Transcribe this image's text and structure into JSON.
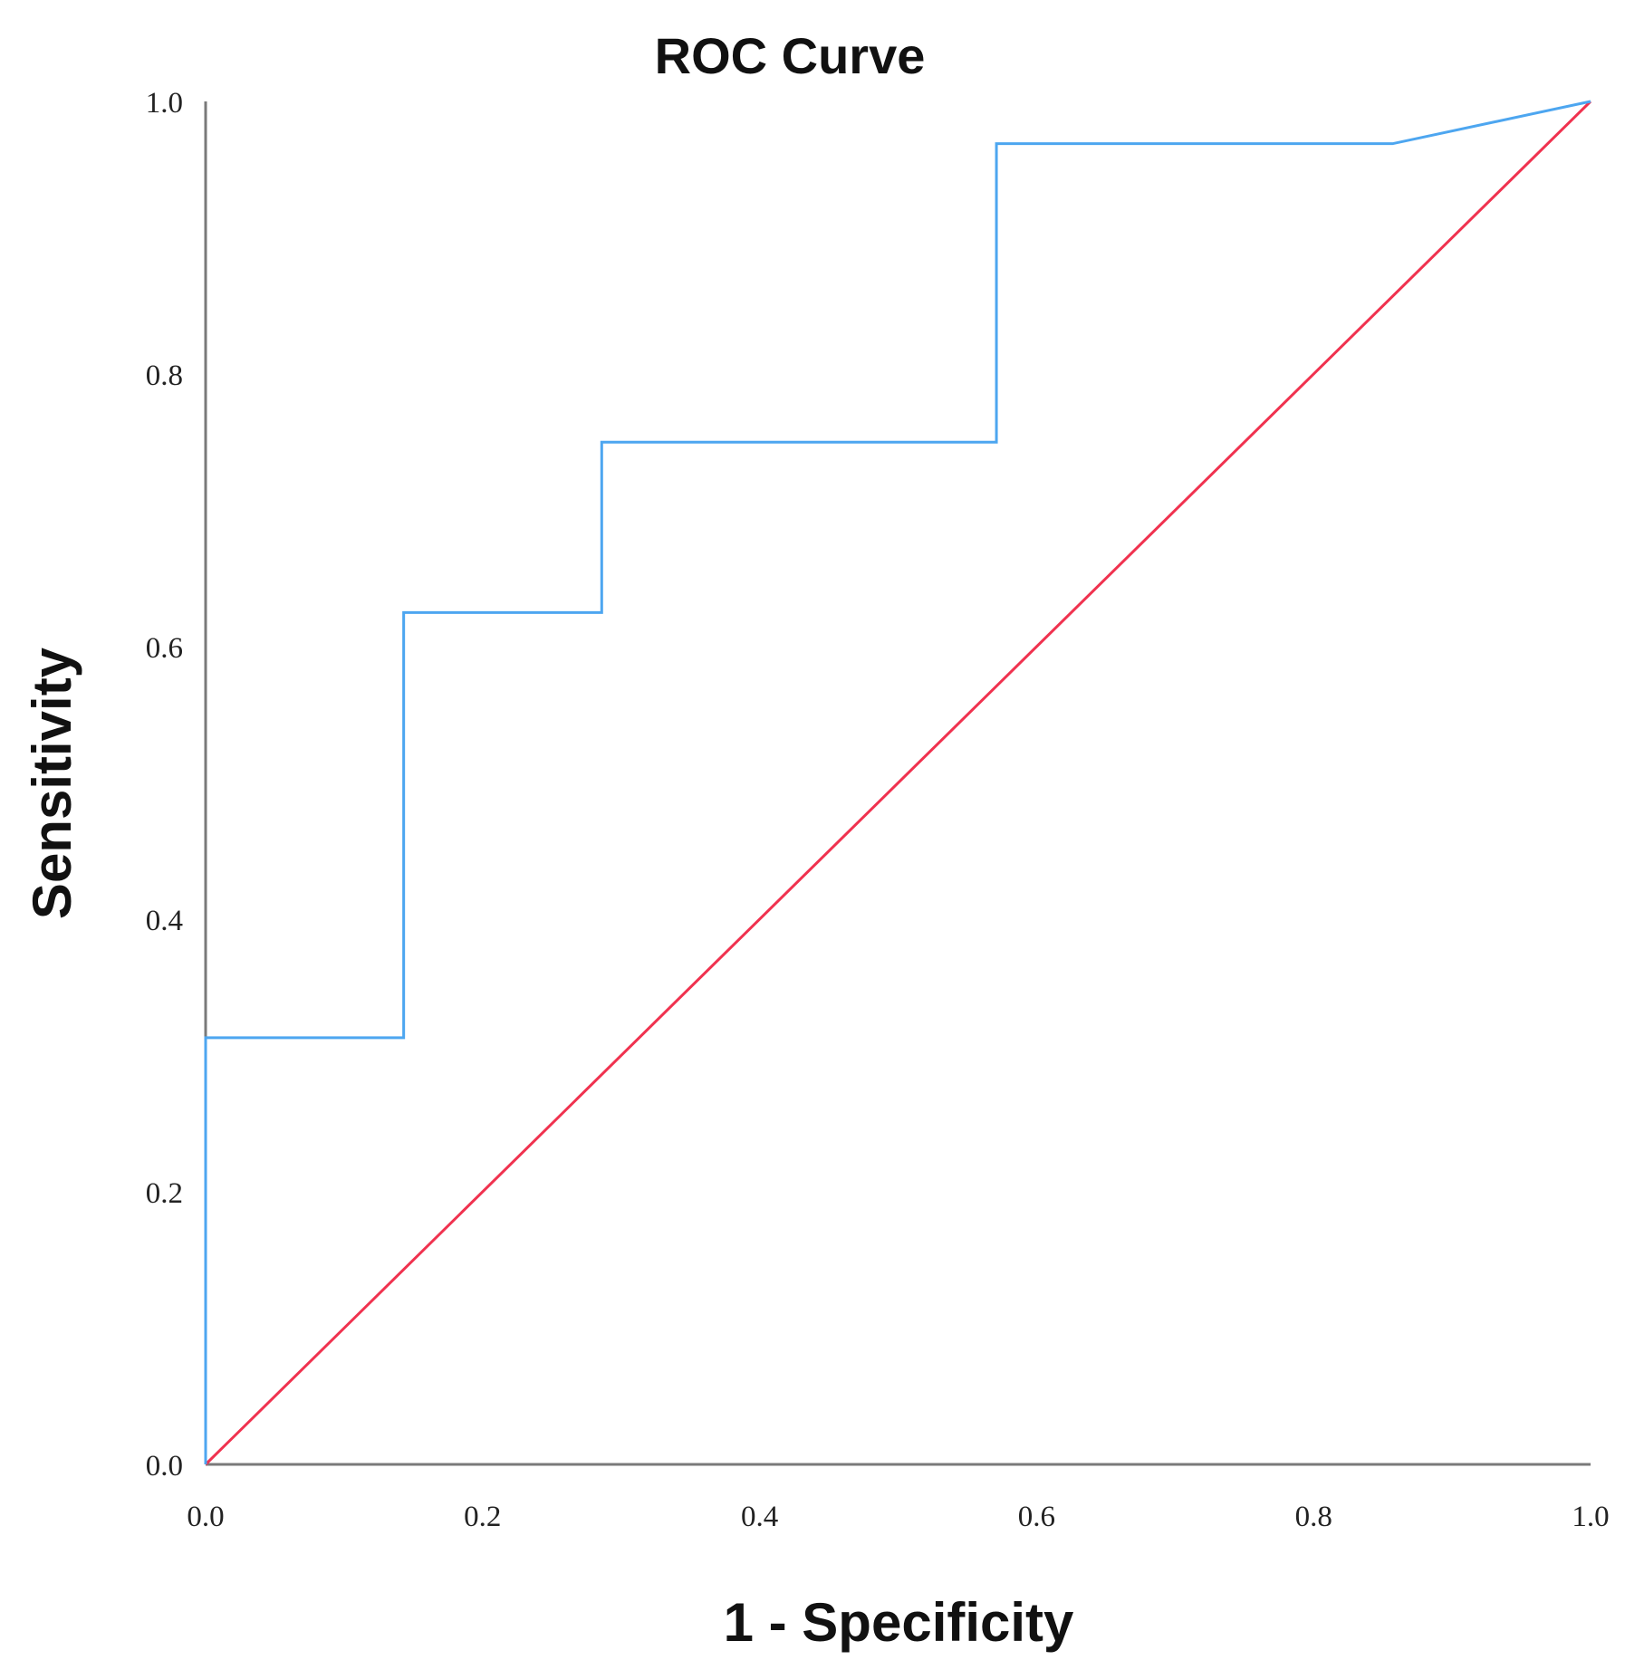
{
  "chart_data": {
    "type": "line",
    "title": "ROC Curve",
    "xlabel": "1 - Specificity",
    "ylabel": "Sensitivity",
    "xlim": [
      0,
      1
    ],
    "ylim": [
      0,
      1
    ],
    "grid": false,
    "x_ticks": [
      "0.0",
      "0.2",
      "0.4",
      "0.6",
      "0.8",
      "1.0"
    ],
    "y_ticks": [
      "0.0",
      "0.2",
      "0.4",
      "0.6",
      "0.8",
      "1.0"
    ],
    "series": [
      {
        "color": "#4da6f0",
        "points": [
          [
            0.0,
            0.0
          ],
          [
            0.0,
            0.313
          ],
          [
            0.143,
            0.313
          ],
          [
            0.143,
            0.625
          ],
          [
            0.286,
            0.625
          ],
          [
            0.286,
            0.75
          ],
          [
            0.571,
            0.75
          ],
          [
            0.571,
            0.969
          ],
          [
            0.857,
            0.969
          ],
          [
            1.0,
            1.0
          ]
        ]
      },
      {
        "color": "#f0324f",
        "points": [
          [
            0.0,
            0.0
          ],
          [
            1.0,
            1.0
          ]
        ]
      }
    ]
  }
}
